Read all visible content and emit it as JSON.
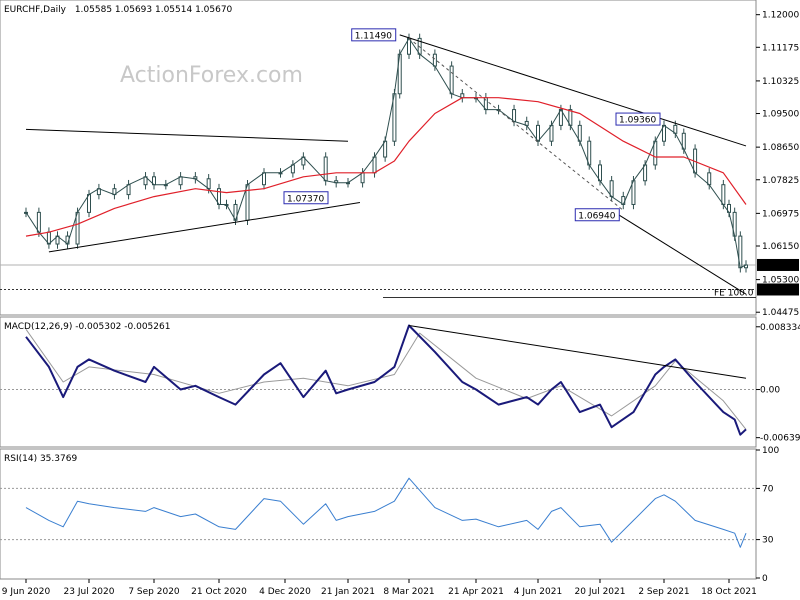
{
  "header": {
    "symbol": "EURCHF,Daily",
    "ohlc": "1.05585 1.05693 1.05514 1.05670",
    "watermark": "ActionForex.com"
  },
  "price_panel": {
    "y_ticks": [
      "1.12000",
      "1.11175",
      "1.10325",
      "1.09500",
      "1.08650",
      "1.07825",
      "1.06975",
      "1.06150",
      "1.05300",
      "1.04475"
    ],
    "current_price_label": "1.05670",
    "fe_level_label": "1.05050",
    "fe_text": "FE 100.0",
    "annotations": [
      "1.11490",
      "1.07370",
      "1.06940",
      "1.09360"
    ]
  },
  "macd_panel": {
    "title": "MACD(12,26,9) -0.005302 -0.005261",
    "y_ticks": [
      "0.008334",
      "0.00",
      "-0.006393"
    ]
  },
  "rsi_panel": {
    "title": "RSI(14) 35.3769",
    "y_ticks": [
      "100",
      "70",
      "30",
      "0"
    ]
  },
  "x_axis": {
    "dates": [
      "9 Jun 2020",
      "23 Jul 2020",
      "7 Sep 2020",
      "21 Oct 2020",
      "4 Dec 2020",
      "21 Jan 2021",
      "8 Mar 2021",
      "21 Apr 2021",
      "4 Jun 2021",
      "20 Jul 2021",
      "2 Sep 2021",
      "18 Oct 2021"
    ]
  },
  "colors": {
    "ma": "#e0202a",
    "macd": "#1a1a7a",
    "signal": "#9a9a9a",
    "rsi": "#3a7fd0",
    "candle": "#2f4f4f"
  },
  "chart_data": [
    {
      "type": "line",
      "title": "EURCHF,Daily",
      "ylim": [
        1.0443,
        1.1227
      ],
      "series": [
        {
          "points": [
            [
              "2020-06-09",
              1.07
            ],
            [
              "2020-06-18",
              1.065
            ],
            [
              "2020-06-25",
              1.062
            ],
            [
              "2020-07-01",
              1.064
            ],
            [
              "2020-07-08",
              1.062
            ],
            [
              "2020-07-15",
              1.07
            ],
            [
              "2020-07-23",
              1.0745
            ],
            [
              "2020-07-30",
              1.076
            ],
            [
              "2020-08-10",
              1.0745
            ],
            [
              "2020-08-20",
              1.077
            ],
            [
              "2020-09-01",
              1.079
            ],
            [
              "2020-09-07",
              1.077
            ],
            [
              "2020-09-15",
              1.077
            ],
            [
              "2020-09-25",
              1.079
            ],
            [
              "2020-10-05",
              1.0785
            ],
            [
              "2020-10-14",
              1.076
            ],
            [
              "2020-10-21",
              1.072
            ],
            [
              "2020-10-26",
              1.072
            ],
            [
              "2020-11-01",
              1.068
            ],
            [
              "2020-11-09",
              1.077
            ],
            [
              "2020-11-20",
              1.08
            ],
            [
              "2020-12-01",
              1.08
            ],
            [
              "2020-12-10",
              1.082
            ],
            [
              "2020-12-18",
              1.084
            ],
            [
              "2021-01-04",
              1.078
            ],
            [
              "2021-01-12",
              1.0775
            ],
            [
              "2021-01-21",
              1.0775
            ],
            [
              "2021-02-01",
              1.08
            ],
            [
              "2021-02-10",
              1.084
            ],
            [
              "2021-02-18",
              1.088
            ],
            [
              "2021-02-25",
              1.1
            ],
            [
              "2021-03-01",
              1.11
            ],
            [
              "2021-03-08",
              1.114
            ],
            [
              "2021-03-15",
              1.11
            ],
            [
              "2021-03-25",
              1.107
            ],
            [
              "2021-04-05",
              1.1
            ],
            [
              "2021-04-12",
              1.099
            ],
            [
              "2021-04-21",
              1.099
            ],
            [
              "2021-04-28",
              1.096
            ],
            [
              "2021-05-07",
              1.096
            ],
            [
              "2021-05-18",
              1.093
            ],
            [
              "2021-05-27",
              1.092
            ],
            [
              "2021-06-04",
              1.088
            ],
            [
              "2021-06-14",
              1.092
            ],
            [
              "2021-06-21",
              1.096
            ],
            [
              "2021-06-28",
              1.092
            ],
            [
              "2021-07-05",
              1.088
            ],
            [
              "2021-07-12",
              1.082
            ],
            [
              "2021-07-20",
              1.078
            ],
            [
              "2021-07-28",
              1.074
            ],
            [
              "2021-08-05",
              1.072
            ],
            [
              "2021-08-12",
              1.078
            ],
            [
              "2021-08-20",
              1.082
            ],
            [
              "2021-08-27",
              1.088
            ],
            [
              "2021-09-02",
              1.092
            ],
            [
              "2021-09-10",
              1.09
            ],
            [
              "2021-09-16",
              1.086
            ],
            [
              "2021-09-24",
              1.08
            ],
            [
              "2021-10-04",
              1.077
            ],
            [
              "2021-10-14",
              1.072
            ],
            [
              "2021-10-18",
              1.07
            ],
            [
              "2021-10-25",
              1.064
            ],
            [
              "2021-11-01",
              1.056
            ],
            [
              "2021-11-08",
              1.0567
            ]
          ]
        },
        {
          "name": "MA",
          "points": [
            [
              "2020-06-09",
              1.064
            ],
            [
              "2020-06-25",
              1.065
            ],
            [
              "2020-07-15",
              1.067
            ],
            [
              "2020-08-10",
              1.071
            ],
            [
              "2020-09-07",
              1.074
            ],
            [
              "2020-10-05",
              1.076
            ],
            [
              "2020-10-26",
              1.075
            ],
            [
              "2020-11-20",
              1.076
            ],
            [
              "2020-12-18",
              1.079
            ],
            [
              "2021-01-12",
              1.08
            ],
            [
              "2021-02-10",
              1.08
            ],
            [
              "2021-02-25",
              1.083
            ],
            [
              "2021-03-08",
              1.088
            ],
            [
              "2021-03-25",
              1.095
            ],
            [
              "2021-04-12",
              1.099
            ],
            [
              "2021-05-07",
              1.099
            ],
            [
              "2021-06-04",
              1.098
            ],
            [
              "2021-07-05",
              1.095
            ],
            [
              "2021-08-05",
              1.088
            ],
            [
              "2021-08-27",
              1.084
            ],
            [
              "2021-09-16",
              1.084
            ],
            [
              "2021-10-14",
              1.08
            ],
            [
              "2021-11-08",
              1.072
            ]
          ]
        }
      ],
      "trendlines": [
        {
          "from": [
            "2020-06-09",
            1.091
          ],
          "to": [
            "2021-01-21",
            1.088
          ]
        },
        {
          "from": [
            "2020-06-25",
            1.06
          ],
          "to": [
            "2021-01-30",
            1.0725
          ]
        },
        {
          "from": [
            "2021-03-01",
            1.1149
          ],
          "to": [
            "2021-11-08",
            1.0868
          ]
        },
        {
          "from": [
            "2021-07-28",
            1.0705
          ],
          "to": [
            "2021-11-08",
            1.0493
          ]
        }
      ],
      "annotations": [
        {
          "text": "1.11490",
          "x": "2021-03-01",
          "y": 1.1149
        },
        {
          "text": "1.07370",
          "x": "2020-12-20",
          "y": 1.0737
        },
        {
          "text": "1.06940",
          "x": "2021-08-05",
          "y": 1.0694
        },
        {
          "text": "1.09360",
          "x": "2021-09-02",
          "y": 1.0936
        }
      ],
      "horizontal_levels": [
        {
          "value": 1.0567,
          "label": "1.05670"
        },
        {
          "value": 1.0505,
          "label": "1.05050",
          "text": "FE 100.0"
        }
      ]
    },
    {
      "type": "line",
      "title": "MACD(12,26,9) -0.005302 -0.005261",
      "ylim": [
        -0.0075,
        0.0095
      ],
      "series": [
        {
          "name": "MACD",
          "points": [
            [
              "2020-06-09",
              0.007
            ],
            [
              "2020-06-25",
              0.003
            ],
            [
              "2020-07-05",
              -0.001
            ],
            [
              "2020-07-15",
              0.003
            ],
            [
              "2020-07-23",
              0.004
            ],
            [
              "2020-08-10",
              0.0025
            ],
            [
              "2020-09-01",
              0.001
            ],
            [
              "2020-09-07",
              0.003
            ],
            [
              "2020-09-25",
              0.0
            ],
            [
              "2020-10-05",
              0.0005
            ],
            [
              "2020-10-21",
              -0.001
            ],
            [
              "2020-11-01",
              -0.002
            ],
            [
              "2020-11-20",
              0.002
            ],
            [
              "2020-12-01",
              0.0035
            ],
            [
              "2020-12-18",
              -0.001
            ],
            [
              "2021-01-04",
              0.0025
            ],
            [
              "2021-01-12",
              -0.0005
            ],
            [
              "2021-01-21",
              0.0
            ],
            [
              "2021-02-10",
              0.001
            ],
            [
              "2021-02-25",
              0.003
            ],
            [
              "2021-03-08",
              0.0085
            ],
            [
              "2021-03-25",
              0.005
            ],
            [
              "2021-04-12",
              0.001
            ],
            [
              "2021-04-21",
              0.0
            ],
            [
              "2021-05-07",
              -0.002
            ],
            [
              "2021-05-27",
              -0.001
            ],
            [
              "2021-06-04",
              -0.002
            ],
            [
              "2021-06-14",
              0.0
            ],
            [
              "2021-06-21",
              0.001
            ],
            [
              "2021-07-05",
              -0.003
            ],
            [
              "2021-07-20",
              -0.002
            ],
            [
              "2021-07-28",
              -0.005
            ],
            [
              "2021-08-12",
              -0.003
            ],
            [
              "2021-08-27",
              0.002
            ],
            [
              "2021-09-02",
              0.003
            ],
            [
              "2021-09-10",
              0.004
            ],
            [
              "2021-09-24",
              0.001
            ],
            [
              "2021-10-14",
              -0.003
            ],
            [
              "2021-10-25",
              -0.004
            ],
            [
              "2021-11-01",
              -0.006
            ],
            [
              "2021-11-08",
              -0.0053
            ]
          ]
        },
        {
          "name": "Signal",
          "points": [
            [
              "2020-06-09",
              0.008
            ],
            [
              "2020-07-05",
              0.001
            ],
            [
              "2020-07-23",
              0.003
            ],
            [
              "2020-09-07",
              0.002
            ],
            [
              "2020-10-21",
              -0.0005
            ],
            [
              "2020-11-20",
              0.001
            ],
            [
              "2020-12-18",
              0.0015
            ],
            [
              "2021-01-21",
              0.0005
            ],
            [
              "2021-02-25",
              0.002
            ],
            [
              "2021-03-15",
              0.0075
            ],
            [
              "2021-04-21",
              0.0015
            ],
            [
              "2021-05-27",
              -0.0012
            ],
            [
              "2021-06-21",
              0.0005
            ],
            [
              "2021-07-28",
              -0.0035
            ],
            [
              "2021-08-27",
              0.0005
            ],
            [
              "2021-09-10",
              0.0038
            ],
            [
              "2021-10-14",
              -0.0015
            ],
            [
              "2021-11-08",
              -0.0053
            ]
          ]
        }
      ],
      "trendlines": [
        {
          "from": [
            "2021-03-08",
            0.0085
          ],
          "to": [
            "2021-11-08",
            0.0015
          ]
        }
      ]
    },
    {
      "type": "line",
      "title": "RSI(14) 35.3769",
      "ylim": [
        0,
        100
      ],
      "series": [
        {
          "name": "RSI(14)",
          "points": [
            [
              "2020-06-09",
              55
            ],
            [
              "2020-06-25",
              45
            ],
            [
              "2020-07-05",
              40
            ],
            [
              "2020-07-15",
              60
            ],
            [
              "2020-07-23",
              58
            ],
            [
              "2020-08-10",
              55
            ],
            [
              "2020-09-01",
              52
            ],
            [
              "2020-09-07",
              55
            ],
            [
              "2020-09-25",
              48
            ],
            [
              "2020-10-05",
              50
            ],
            [
              "2020-10-21",
              40
            ],
            [
              "2020-11-01",
              38
            ],
            [
              "2020-11-20",
              62
            ],
            [
              "2020-12-01",
              60
            ],
            [
              "2020-12-18",
              42
            ],
            [
              "2021-01-04",
              58
            ],
            [
              "2021-01-12",
              45
            ],
            [
              "2021-01-21",
              48
            ],
            [
              "2021-02-10",
              52
            ],
            [
              "2021-02-25",
              60
            ],
            [
              "2021-03-08",
              78
            ],
            [
              "2021-03-25",
              55
            ],
            [
              "2021-04-12",
              45
            ],
            [
              "2021-04-21",
              46
            ],
            [
              "2021-05-07",
              40
            ],
            [
              "2021-05-27",
              45
            ],
            [
              "2021-06-04",
              38
            ],
            [
              "2021-06-14",
              52
            ],
            [
              "2021-06-21",
              55
            ],
            [
              "2021-07-05",
              40
            ],
            [
              "2021-07-20",
              42
            ],
            [
              "2021-07-28",
              28
            ],
            [
              "2021-08-12",
              45
            ],
            [
              "2021-08-27",
              62
            ],
            [
              "2021-09-02",
              65
            ],
            [
              "2021-09-10",
              60
            ],
            [
              "2021-09-24",
              45
            ],
            [
              "2021-10-14",
              38
            ],
            [
              "2021-10-25",
              35
            ],
            [
              "2021-11-01",
              24
            ],
            [
              "2021-11-08",
              35
            ]
          ]
        }
      ],
      "levels": [
        70,
        30
      ]
    }
  ]
}
